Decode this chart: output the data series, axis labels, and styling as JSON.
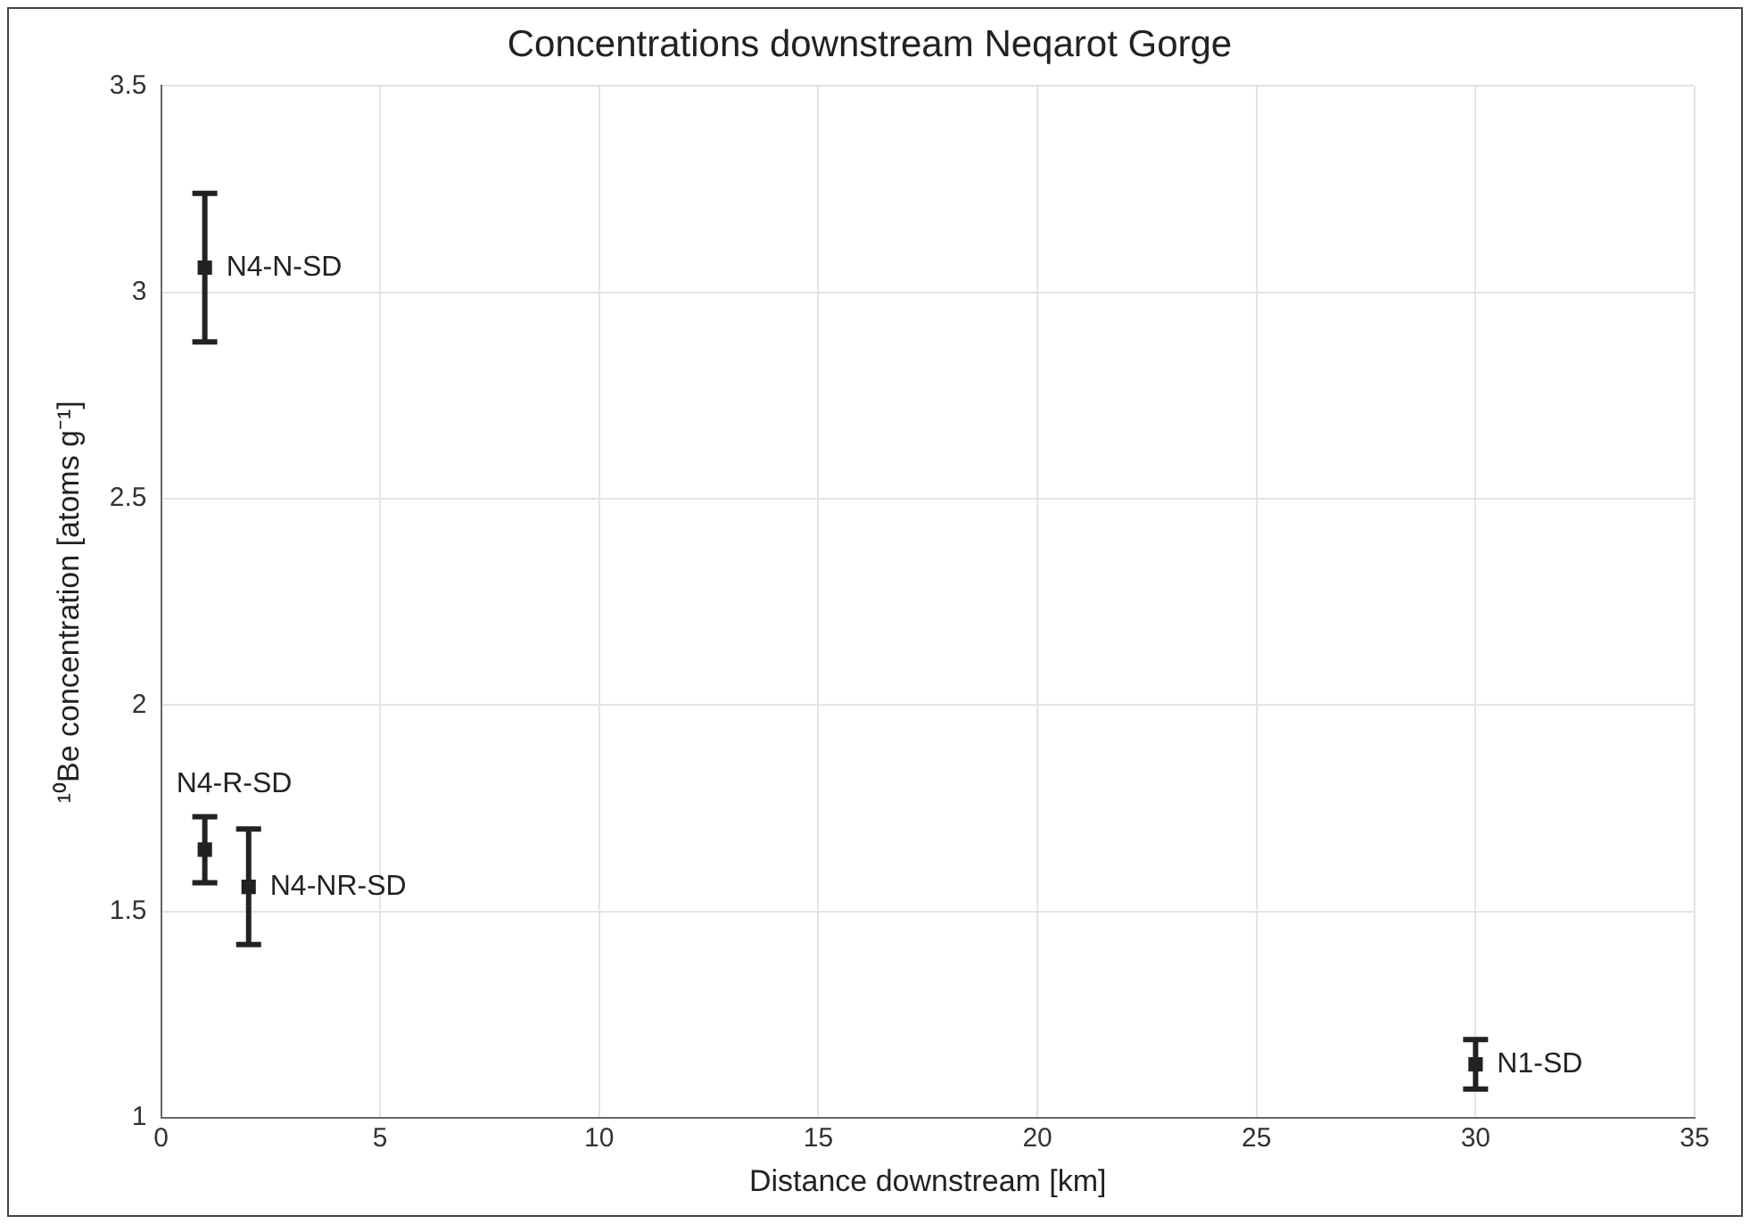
{
  "chart_data": {
    "type": "scatter",
    "title": "Concentrations downstream Neqarot Gorge",
    "xlabel": "Distance downstream [km]",
    "ylabel": "¹⁰Be concentration [atoms g⁻¹]",
    "series": [
      {
        "color": "#222222",
        "x": [
          1,
          1,
          2,
          30
        ],
        "values": [
          3.06,
          1.65,
          1.56,
          1.13
        ],
        "errors": [
          0.18,
          0.08,
          0.14,
          0.06
        ]
      }
    ],
    "annotations": [
      {
        "text": "N4-N-SD",
        "x": 1,
        "y": 3.06
      },
      {
        "text": "N4-R-SD",
        "x": 1,
        "y": 1.65
      },
      {
        "text": "N4-NR-SD",
        "x": 2,
        "y": 1.56
      },
      {
        "text": "N1-SD",
        "x": 30,
        "y": 1.13
      }
    ],
    "xlim": [
      0,
      35
    ],
    "xticks": [
      0,
      5,
      10,
      15,
      20,
      25,
      30,
      35
    ],
    "ylim": [
      1,
      3.5
    ],
    "yticks": [
      1,
      1.5,
      2,
      2.5,
      3,
      3.5
    ],
    "grid": true,
    "legend": false,
    "marker": "square"
  }
}
